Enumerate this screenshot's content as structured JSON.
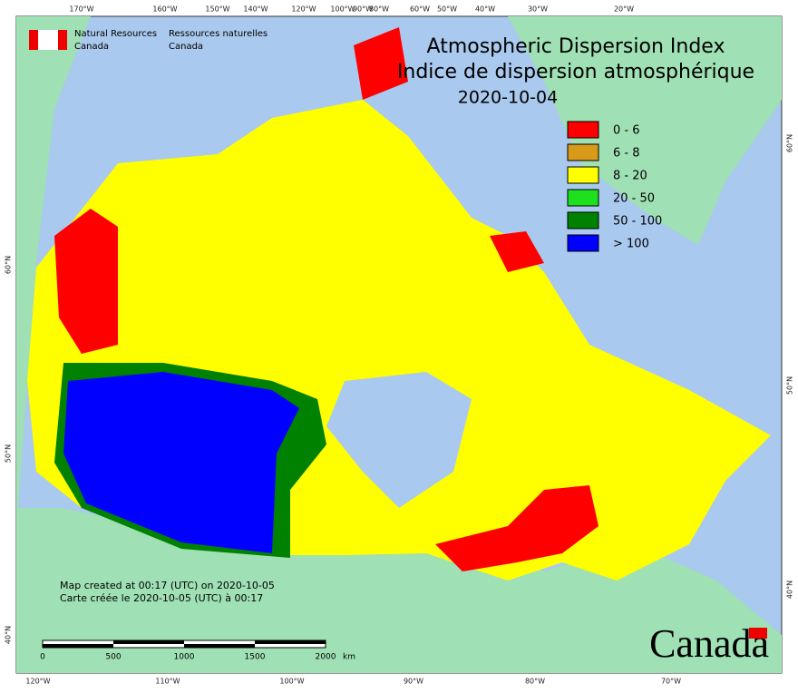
{
  "header": {
    "agency_en": "Natural Resources",
    "agency_en_2": "Canada",
    "agency_fr": "Ressources naturelles",
    "agency_fr_2": "Canada"
  },
  "title": {
    "en": "Atmospheric Dispersion Index",
    "fr": "Indice de dispersion atmosphérique",
    "date": "2020-10-04"
  },
  "legend": [
    {
      "label": "0 - 6",
      "color": "#ff0000"
    },
    {
      "label": "6 - 8",
      "color": "#d99a1a"
    },
    {
      "label": "8 - 20",
      "color": "#ffff00"
    },
    {
      "label": "20 - 50",
      "color": "#1ee01e"
    },
    {
      "label": "50 - 100",
      "color": "#008200"
    },
    {
      "label": "> 100",
      "color": "#0000ff"
    }
  ],
  "graticule": {
    "top": [
      "170°W",
      "160°W",
      "150°W",
      "140°W",
      "120°W",
      "100°W",
      "90°W",
      "80°W",
      "60°W",
      "50°W",
      "40°W",
      "30°W",
      "20°W"
    ],
    "bottom": [
      "120°W",
      "110°W",
      "100°W",
      "90°W",
      "80°W",
      "70°W"
    ],
    "left": [
      "60°N",
      "50°N",
      "40°N"
    ],
    "right": [
      "60°N",
      "50°N",
      "40°N"
    ]
  },
  "credits": [
    "Map created at 00:17 (UTC) on 2020-10-05",
    "Carte créée le 2020-10-05 (UTC) à 00:17"
  ],
  "scale_bar": {
    "labels": [
      "0",
      "500",
      "1000",
      "1500",
      "2000"
    ],
    "unit": "km"
  },
  "wordmark": "Canada"
}
